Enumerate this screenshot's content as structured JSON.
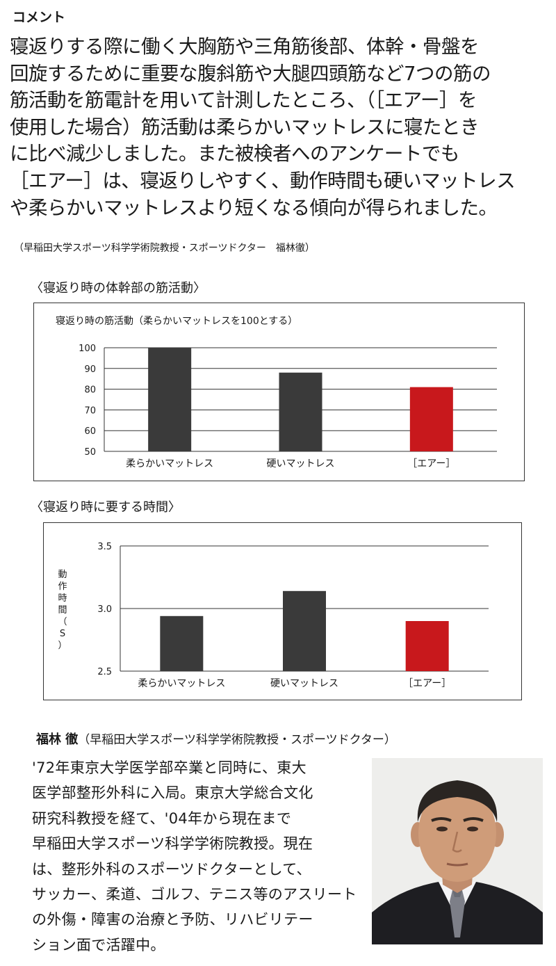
{
  "comment": {
    "heading": "コメント",
    "lines": [
      "寝返りする際に働く大胸筋や三角筋後部、体幹・骨盤を",
      "回旋するために重要な腹斜筋や大腿四頭筋など7つの筋の",
      "筋活動を筋電計を用いて計測したところ、（［エアー］を",
      "使用した場合）筋活動は柔らかいマットレスに寝たとき",
      "に比べ減少しました。また被検者へのアンケートでも",
      "［エアー］は、寝返りしやすく、動作時間も硬いマットレス",
      "や柔らかいマットレスより短くなる傾向が得られました。"
    ],
    "credit": "（早稲田大学スポーツ科学学術院教授・スポーツドクター　福林徹）"
  },
  "chart_data": [
    {
      "type": "bar",
      "section_title": "〈寝返り時の体幹部の筋活動〉",
      "title": "寝返り時の筋活動（柔らかいマットレスを100とする）",
      "categories": [
        "柔らかいマットレス",
        "硬いマットレス",
        "［エアー］"
      ],
      "values": [
        100,
        88,
        81
      ],
      "ylim": [
        50,
        100
      ],
      "yticks": [
        "100",
        "90",
        "80",
        "70",
        "60",
        "50"
      ],
      "ylabel": "",
      "grid": true,
      "colors": [
        "#3a3a3a",
        "#3a3a3a",
        "#c8181c"
      ]
    },
    {
      "type": "bar",
      "section_title": "〈寝返り時に要する時間〉",
      "title": "",
      "categories": [
        "柔らかいマットレス",
        "硬いマットレス",
        "［エアー］"
      ],
      "values": [
        2.94,
        3.14,
        2.9
      ],
      "ylim": [
        2.5,
        3.5
      ],
      "yticks": [
        "3.5",
        "3.0",
        "2.5"
      ],
      "ylabel": "動作時間（S）",
      "grid": true,
      "colors": [
        "#3a3a3a",
        "#3a3a3a",
        "#c8181c"
      ]
    }
  ],
  "profile": {
    "name": "福林 徹",
    "affiliation": "（早稲田大学スポーツ科学学術院教授・スポーツドクター）",
    "lines": [
      "'72年東京大学医学部卒業と同時に、東大",
      "医学部整形外科に入局。東京大学総合文化",
      "研究科教授を経て、'04年から現在まで",
      "早稲田大学スポーツ科学学術院教授。現在",
      "は、整形外科のスポーツドクターとして、",
      "サッカー、柔道、ゴルフ、テニス等のアスリート",
      "の外傷・障害の治療と予防、リハビリテー",
      "ション面で活躍中。"
    ]
  }
}
